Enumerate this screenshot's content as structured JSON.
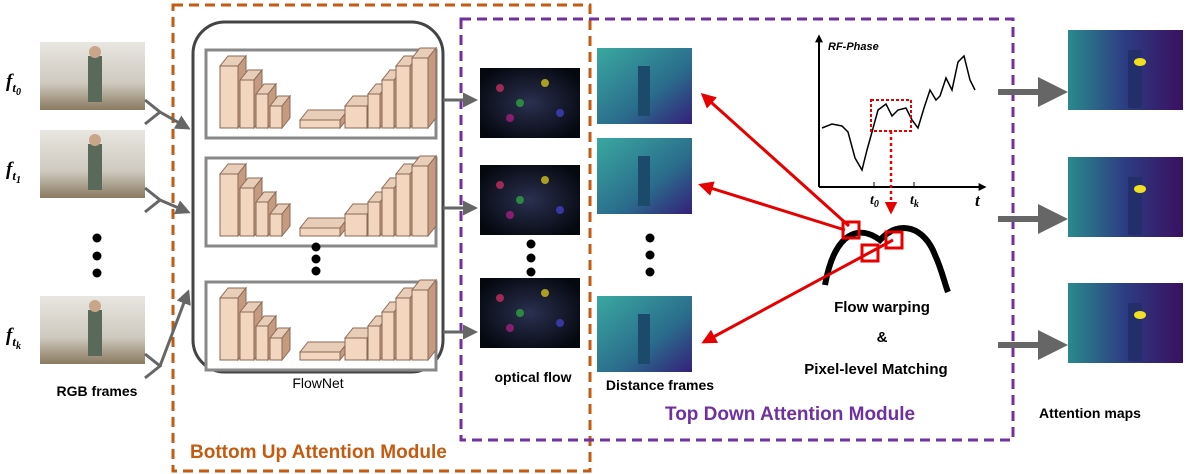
{
  "frames": [
    {
      "base": "f",
      "sub": "t",
      "index": "0"
    },
    {
      "base": "f",
      "sub": "t",
      "index": "1"
    },
    {
      "base": "f",
      "sub": "t",
      "index": "k"
    }
  ],
  "labels": {
    "rgb": "RGB frames",
    "flownet": "FlowNet",
    "optical_flow": "optical flow",
    "distance": "Distance frames",
    "attention": "Attention maps"
  },
  "modules": {
    "bottom_up": "Bottom Up Attention Module",
    "top_down": "Top Down Attention Module"
  },
  "plot": {
    "title": "RF-Phase",
    "tick_t0": {
      "base": "t",
      "sub": "0"
    },
    "tick_tk": {
      "base": "t",
      "sub": "k"
    },
    "axis": "t"
  },
  "matching": {
    "line1": "Flow warping",
    "line2": "&",
    "line3": "Pixel-level Matching"
  }
}
